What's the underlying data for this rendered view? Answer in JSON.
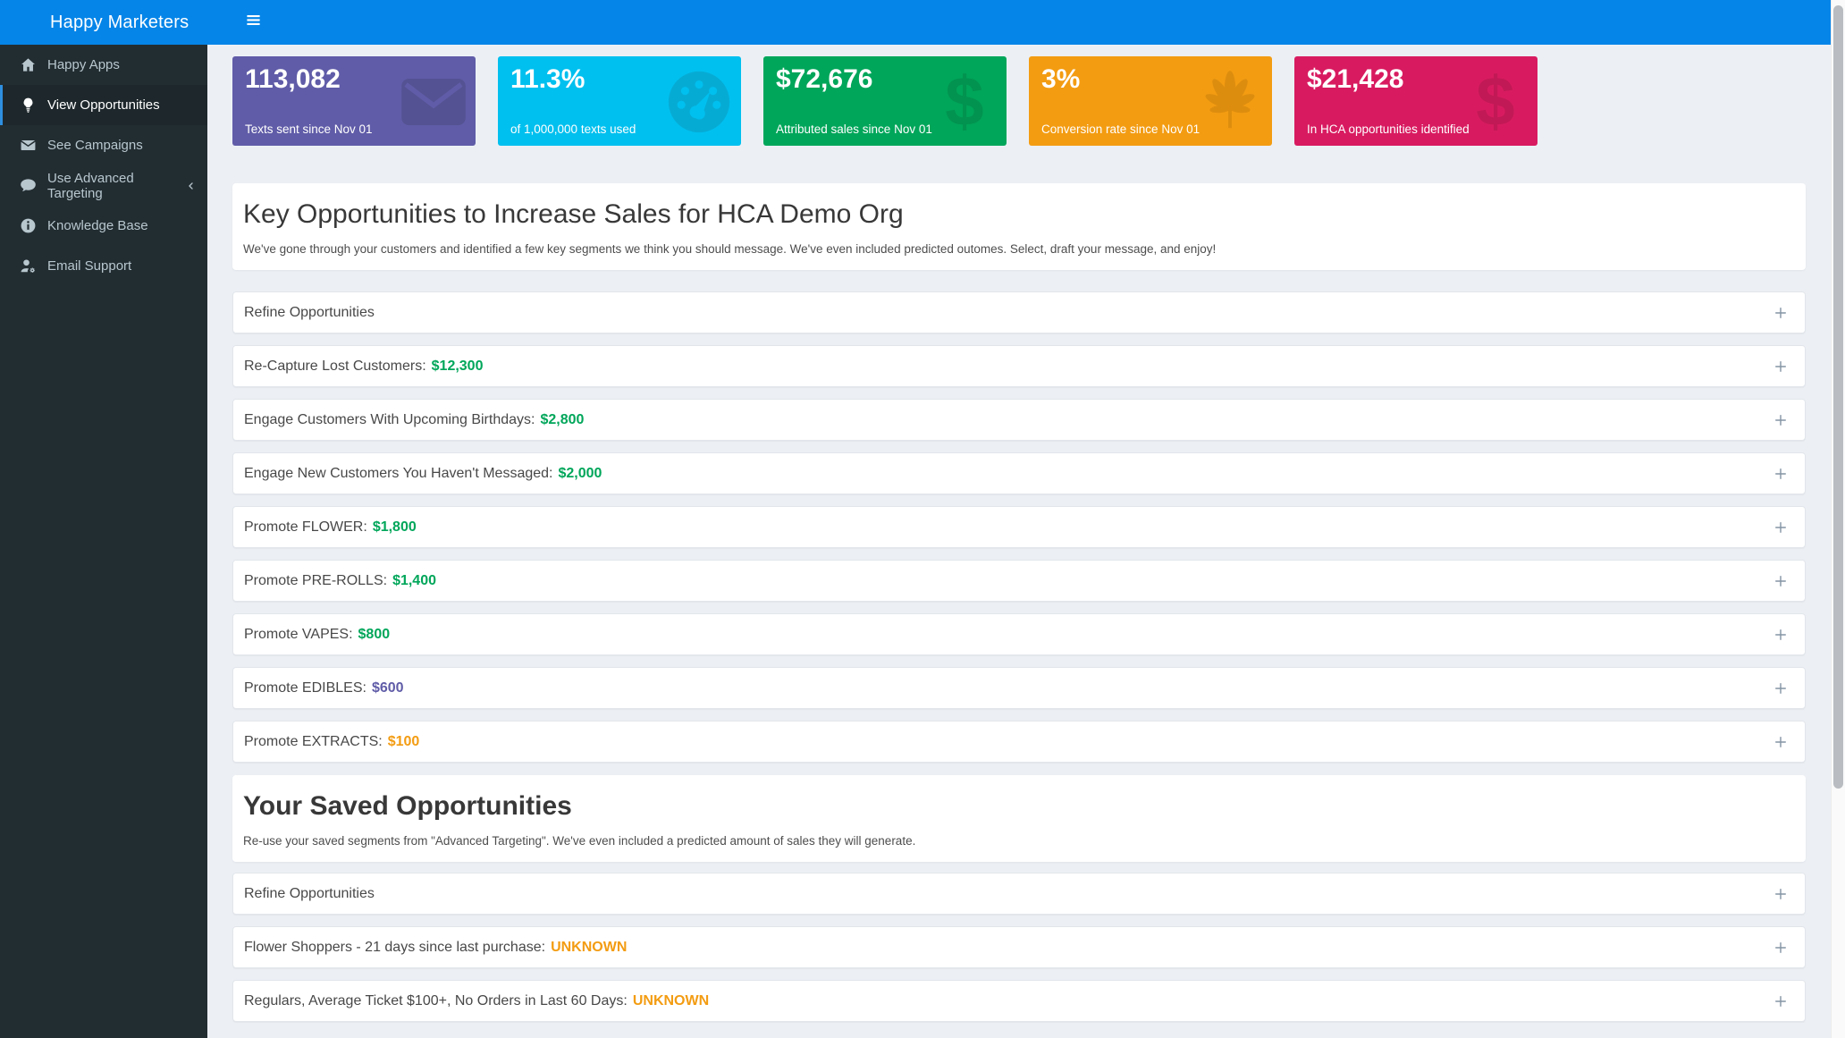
{
  "topbar": {
    "brand": "Happy Marketers",
    "menu_icon": "hamburger-icon"
  },
  "sidebar": {
    "items": [
      {
        "label": "Happy Apps",
        "icon": "home-icon",
        "active": false,
        "chevron": false
      },
      {
        "label": "View Opportunities",
        "icon": "lightbulb-icon",
        "active": true,
        "chevron": false
      },
      {
        "label": "See Campaigns",
        "icon": "envelope-icon",
        "active": false,
        "chevron": false
      },
      {
        "label": "Use Advanced Targeting",
        "icon": "comment-icon",
        "active": false,
        "chevron": true
      },
      {
        "label": "Knowledge Base",
        "icon": "info-icon",
        "active": false,
        "chevron": false
      },
      {
        "label": "Email Support",
        "icon": "user-gear-icon",
        "active": false,
        "chevron": false
      }
    ]
  },
  "stats": {
    "cards": [
      {
        "value": "113,082",
        "label": "Texts sent since Nov 01",
        "icon": "envelope-card-icon",
        "color": "#605ca8",
        "icon_color": "#555293"
      },
      {
        "value": "11.3%",
        "label": "of 1,000,000 texts used",
        "icon": "gauge-icon",
        "color": "#00c0ef",
        "icon_color": "#06abd4"
      },
      {
        "value": "$72,676",
        "label": "Attributed sales since Nov 01",
        "icon": "dollar-icon",
        "color": "#00a65a",
        "icon_color": "#029350"
      },
      {
        "value": "3%",
        "label": "Conversion rate since Nov 01",
        "icon": "cannabis-icon",
        "color": "#f39c12",
        "icon_color": "#dd8d0e"
      },
      {
        "value": "$21,428",
        "label": "In HCA opportunities identified",
        "icon": "dollar-icon",
        "color": "#d81b60",
        "icon_color": "#c11955"
      }
    ]
  },
  "sections": [
    {
      "title": "Key Opportunities to Increase Sales for HCA Demo Org",
      "subtitle": "We've gone through your customers and identified a few key segments we think you should message. We've even included predicted outomes. Select, draft your message, and enjoy!",
      "expand_icon": "plus-icon",
      "rows": [
        {
          "label": "Refine Opportunities",
          "value": "",
          "value_color": ""
        },
        {
          "label": "Re-Capture Lost Customers:",
          "value": "$12,300",
          "value_color": "green"
        },
        {
          "label": "Engage Customers With Upcoming Birthdays:",
          "value": "$2,800",
          "value_color": "green"
        },
        {
          "label": "Engage New Customers You Haven't Messaged:",
          "value": "$2,000",
          "value_color": "green"
        },
        {
          "label": "Promote FLOWER:",
          "value": "$1,800",
          "value_color": "green"
        },
        {
          "label": "Promote PRE-ROLLS:",
          "value": "$1,400",
          "value_color": "green"
        },
        {
          "label": "Promote VAPES:",
          "value": "$800",
          "value_color": "green"
        },
        {
          "label": "Promote EDIBLES:",
          "value": "$600",
          "value_color": "purple"
        },
        {
          "label": "Promote EXTRACTS:",
          "value": "$100",
          "value_color": "orange"
        }
      ]
    },
    {
      "title": "Your Saved Opportunities",
      "subtitle": "Re-use your saved segments from \"Advanced Targeting\". We've even included a predicted amount of sales they will generate.",
      "expand_icon": "plus-icon",
      "rows": [
        {
          "label": "Refine Opportunities",
          "value": "",
          "value_color": ""
        },
        {
          "label": "Flower Shoppers - 21 days since last purchase:",
          "value": "UNKNOWN",
          "value_color": "orange"
        },
        {
          "label": "Regulars, Average Ticket $100+, No Orders in Last 60 Days:",
          "value": "UNKNOWN",
          "value_color": "orange"
        }
      ]
    }
  ],
  "colors": {
    "green": "#00a65a",
    "purple": "#605ca8",
    "orange": "#f39c12",
    "topbar_blue": "#0585e8",
    "sidebar_dark": "#222d32",
    "content_bg": "#ecf0f5"
  }
}
